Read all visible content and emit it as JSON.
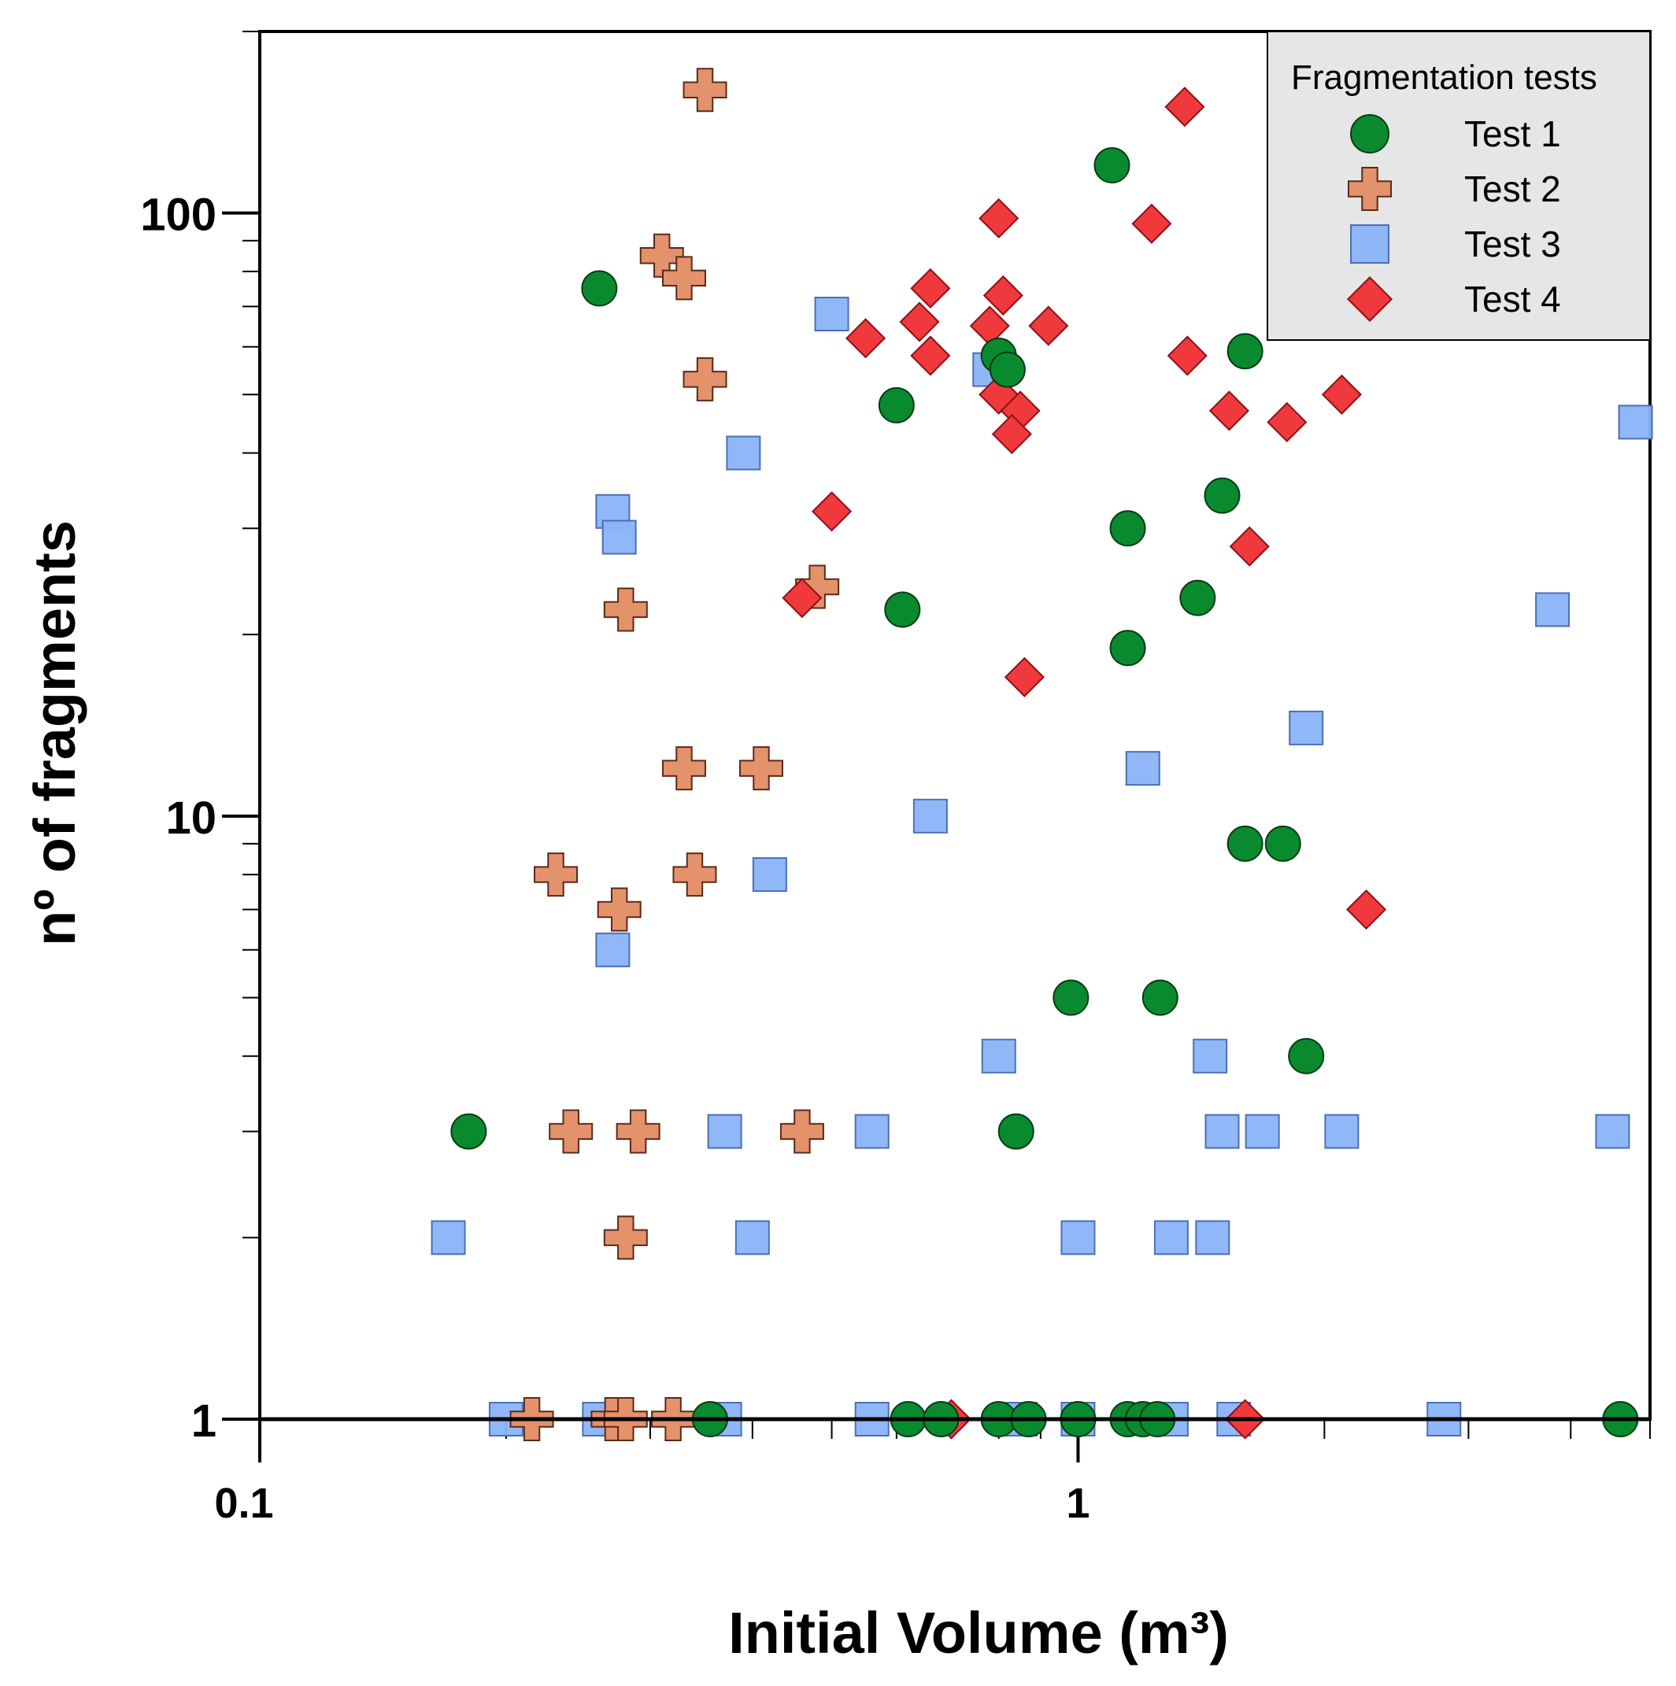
{
  "chart_data": {
    "type": "scatter",
    "title": "",
    "xlabel": "Initial Volume (m³)",
    "ylabel": "nº of fragments",
    "xscale": "log",
    "yscale": "log",
    "xlim": [
      0.1,
      5
    ],
    "ylim": [
      1,
      200
    ],
    "x_ticks": [
      {
        "value": 0.1,
        "label": "0.1"
      },
      {
        "value": 1,
        "label": "1"
      }
    ],
    "y_ticks": [
      {
        "value": 1,
        "label": "1"
      },
      {
        "value": 10,
        "label": "10"
      },
      {
        "value": 100,
        "label": "100"
      }
    ],
    "grid": false,
    "legend": {
      "title": "Fragmentation tests",
      "position": "top-right"
    },
    "series": [
      {
        "name": "Test 1",
        "marker": "circle",
        "color": "#0a8a2e",
        "points": [
          [
            0.26,
            75
          ],
          [
            0.6,
            48
          ],
          [
            0.61,
            22
          ],
          [
            0.8,
            58
          ],
          [
            0.82,
            55
          ],
          [
            1.1,
            120
          ],
          [
            1.15,
            30
          ],
          [
            1.15,
            19
          ],
          [
            1.4,
            23
          ],
          [
            1.5,
            34
          ],
          [
            1.6,
            59
          ],
          [
            1.6,
            9
          ],
          [
            1.78,
            9
          ],
          [
            1.9,
            4
          ],
          [
            0.98,
            5
          ],
          [
            1.26,
            5
          ],
          [
            0.18,
            3
          ],
          [
            0.84,
            3
          ],
          [
            0.355,
            1
          ],
          [
            0.62,
            1
          ],
          [
            0.68,
            1
          ],
          [
            0.8,
            1
          ],
          [
            0.87,
            1
          ],
          [
            1.0,
            1
          ],
          [
            1.15,
            1
          ],
          [
            1.2,
            1
          ],
          [
            1.25,
            1
          ],
          [
            4.6,
            1
          ]
        ]
      },
      {
        "name": "Test 2",
        "marker": "cross",
        "color": "#e4926c",
        "points": [
          [
            0.35,
            160
          ],
          [
            0.31,
            85
          ],
          [
            0.33,
            78
          ],
          [
            0.35,
            53
          ],
          [
            0.28,
            22
          ],
          [
            0.48,
            24
          ],
          [
            0.33,
            12
          ],
          [
            0.41,
            12
          ],
          [
            0.23,
            8
          ],
          [
            0.34,
            8
          ],
          [
            0.275,
            7
          ],
          [
            0.24,
            3
          ],
          [
            0.29,
            3
          ],
          [
            0.46,
            3
          ],
          [
            0.28,
            2
          ],
          [
            0.215,
            1
          ],
          [
            0.27,
            1
          ],
          [
            0.28,
            1
          ],
          [
            0.32,
            1
          ]
        ]
      },
      {
        "name": "Test 3",
        "marker": "square",
        "color": "#8ab4f8",
        "points": [
          [
            0.5,
            68
          ],
          [
            0.78,
            55
          ],
          [
            0.39,
            40
          ],
          [
            0.27,
            32
          ],
          [
            0.275,
            29
          ],
          [
            4.8,
            45
          ],
          [
            3.8,
            22
          ],
          [
            1.9,
            14
          ],
          [
            1.2,
            12
          ],
          [
            0.66,
            10
          ],
          [
            0.42,
            8
          ],
          [
            0.27,
            6
          ],
          [
            0.8,
            4
          ],
          [
            1.45,
            4
          ],
          [
            0.37,
            3
          ],
          [
            0.56,
            3
          ],
          [
            1.5,
            3
          ],
          [
            1.68,
            3
          ],
          [
            2.1,
            3
          ],
          [
            4.5,
            3
          ],
          [
            0.17,
            2
          ],
          [
            0.4,
            2
          ],
          [
            1.0,
            2
          ],
          [
            1.3,
            2
          ],
          [
            1.46,
            2
          ],
          [
            0.2,
            1
          ],
          [
            0.26,
            1
          ],
          [
            0.37,
            1
          ],
          [
            0.56,
            1
          ],
          [
            0.85,
            1
          ],
          [
            1.0,
            1
          ],
          [
            1.3,
            1
          ],
          [
            1.55,
            1
          ],
          [
            2.8,
            1
          ]
        ]
      },
      {
        "name": "Test 4",
        "marker": "diamond",
        "color": "#f0393c",
        "points": [
          [
            1.35,
            150
          ],
          [
            0.8,
            98
          ],
          [
            1.23,
            96
          ],
          [
            0.66,
            75
          ],
          [
            0.81,
            73
          ],
          [
            0.64,
            66
          ],
          [
            0.78,
            65
          ],
          [
            0.92,
            65
          ],
          [
            0.55,
            62
          ],
          [
            0.66,
            58
          ],
          [
            1.36,
            58
          ],
          [
            0.8,
            50
          ],
          [
            0.85,
            47
          ],
          [
            1.53,
            47
          ],
          [
            2.1,
            50
          ],
          [
            1.8,
            45
          ],
          [
            0.83,
            43
          ],
          [
            0.5,
            32
          ],
          [
            1.62,
            28
          ],
          [
            0.46,
            23
          ],
          [
            0.86,
            17
          ],
          [
            2.25,
            7
          ],
          [
            0.7,
            1
          ],
          [
            1.6,
            1
          ]
        ]
      }
    ]
  }
}
